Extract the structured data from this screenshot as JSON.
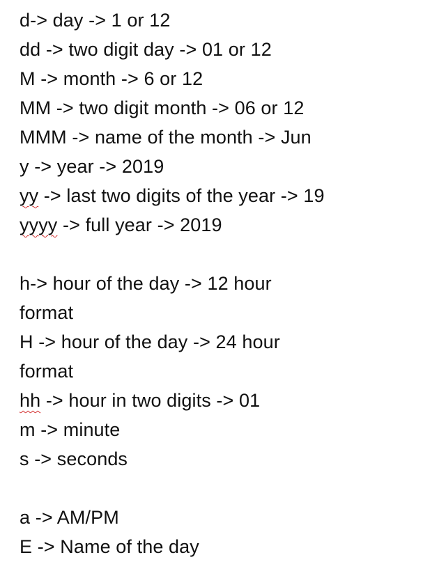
{
  "groups": {
    "date": [
      {
        "token": "d",
        "text": "-> day -> 1 or 12"
      },
      {
        "token": "dd",
        "text": " -> two digit day -> 01 or 12"
      },
      {
        "token": "M",
        "text": " -> month -> 6 or 12"
      },
      {
        "token": "MM",
        "text": " -> two digit month -> 06 or 12"
      },
      {
        "token": "MMM",
        "text": " -> name of the month -> Jun"
      },
      {
        "token": "y",
        "text": " -> year -> 2019"
      },
      {
        "token": "yy",
        "text": " -> last two digits of the year -> 19"
      },
      {
        "token": "yyyy",
        "text": " -> full year -> 2019"
      }
    ],
    "time": {
      "h_line_1": {
        "token": "h",
        "text": "-> hour of the day -> 12 hour"
      },
      "h_line_2": "format",
      "H_line_1": {
        "token": "H",
        "text": " -> hour of the day -> 24 hour"
      },
      "H_line_2": "format",
      "hh": {
        "token": "hh",
        "text": " -> hour in two digits -> 01"
      },
      "m": {
        "token": "m",
        "text": " -> minute"
      },
      "s": {
        "token": "s",
        "text": " -> seconds"
      }
    },
    "misc": [
      {
        "token": "a",
        "text": " -> AM/PM"
      },
      {
        "token": "E",
        "text": " -> Name of the day"
      }
    ]
  }
}
